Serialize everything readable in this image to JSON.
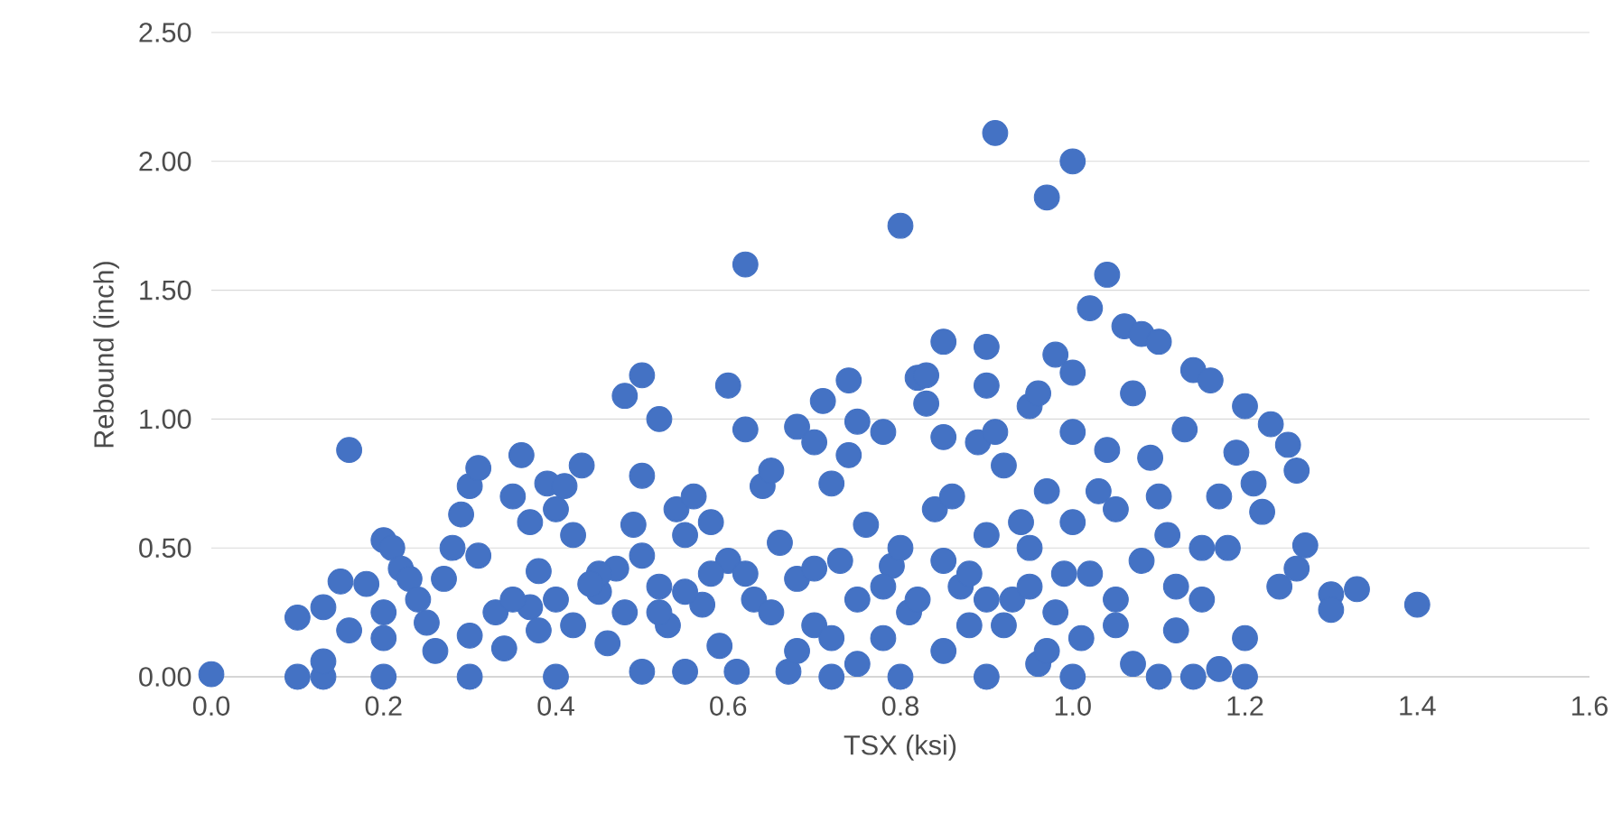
{
  "chart_data": {
    "type": "scatter",
    "xlabel": "TSX (ksi)",
    "ylabel": "Rebound (inch)",
    "color": "#4472c4",
    "marker": "circle",
    "grid": "y",
    "xlim": [
      0,
      1.6
    ],
    "ylim": [
      0,
      2.5
    ],
    "xticks": [
      {
        "value": 0,
        "label": "0.0"
      },
      {
        "value": 0.2,
        "label": "0.2"
      },
      {
        "value": 0.4,
        "label": "0.4"
      },
      {
        "value": 0.6,
        "label": "0.6"
      },
      {
        "value": 0.8,
        "label": "0.8"
      },
      {
        "value": 1,
        "label": "1.0"
      },
      {
        "value": 1.2,
        "label": "1.2"
      },
      {
        "value": 1.4,
        "label": "1.4"
      },
      {
        "value": 1.6,
        "label": "1.6"
      }
    ],
    "yticks": [
      {
        "value": 0,
        "label": "0.00"
      },
      {
        "value": 0.5,
        "label": "0.50"
      },
      {
        "value": 1,
        "label": "1.00"
      },
      {
        "value": 1.5,
        "label": "1.50"
      },
      {
        "value": 2,
        "label": "2.00"
      },
      {
        "value": 2.5,
        "label": "2.50"
      }
    ],
    "x": [
      0.0,
      0.1,
      0.1,
      0.13,
      0.13,
      0.13,
      0.15,
      0.16,
      0.16,
      0.18,
      0.2,
      0.2,
      0.2,
      0.2,
      0.21,
      0.22,
      0.23,
      0.24,
      0.25,
      0.26,
      0.27,
      0.28,
      0.29,
      0.3,
      0.3,
      0.3,
      0.31,
      0.31,
      0.33,
      0.34,
      0.35,
      0.36,
      0.37,
      0.37,
      0.38,
      0.39,
      0.4,
      0.4,
      0.41,
      0.42,
      0.42,
      0.43,
      0.45,
      0.46,
      0.47,
      0.48,
      0.48,
      0.49,
      0.5,
      0.5,
      0.5,
      0.5,
      0.52,
      0.52,
      0.53,
      0.54,
      0.55,
      0.55,
      0.56,
      0.57,
      0.58,
      0.59,
      0.6,
      0.6,
      0.61,
      0.62,
      0.62,
      0.63,
      0.64,
      0.65,
      0.66,
      0.67,
      0.68,
      0.68,
      0.7,
      0.7,
      0.71,
      0.72,
      0.72,
      0.73,
      0.74,
      0.74,
      0.75,
      0.75,
      0.76,
      0.78,
      0.78,
      0.79,
      0.8,
      0.8,
      0.8,
      0.81,
      0.82,
      0.83,
      0.83,
      0.84,
      0.85,
      0.85,
      0.85,
      0.86,
      0.87,
      0.88,
      0.89,
      0.9,
      0.9,
      0.9,
      0.9,
      0.91,
      0.91,
      0.92,
      0.93,
      0.94,
      0.95,
      0.96,
      0.96,
      0.97,
      0.97,
      0.98,
      0.99,
      1.0,
      1.0,
      1.0,
      1.0,
      1.01,
      1.02,
      1.03,
      1.04,
      1.04,
      1.05,
      1.06,
      1.07,
      1.07,
      1.08,
      1.09,
      1.1,
      1.1,
      1.11,
      1.12,
      1.13,
      1.14,
      1.14,
      1.15,
      1.16,
      1.17,
      1.17,
      1.18,
      1.19,
      1.2,
      1.2,
      1.2,
      1.21,
      1.22,
      1.23,
      1.24,
      1.25,
      1.26,
      1.26,
      1.27,
      1.3,
      1.3,
      1.33,
      1.4,
      0.35,
      0.45,
      0.55,
      0.62,
      0.65,
      0.7,
      0.72,
      0.78,
      0.82,
      0.85,
      0.88,
      0.92,
      0.95,
      0.98,
      1.02,
      1.05,
      1.08,
      1.12,
      1.15,
      1.0,
      0.95,
      0.75,
      0.68,
      0.58,
      0.52,
      0.44,
      0.4,
      0.38,
      1.1,
      1.05,
      0.97,
      0.9
    ],
    "values": [
      0.01,
      0.0,
      0.23,
      0.0,
      0.06,
      0.27,
      0.37,
      0.88,
      0.18,
      0.36,
      0.0,
      0.15,
      0.25,
      0.53,
      0.5,
      0.42,
      0.38,
      0.3,
      0.21,
      0.1,
      0.38,
      0.5,
      0.63,
      0.74,
      0.16,
      0.0,
      0.81,
      0.47,
      0.25,
      0.11,
      0.7,
      0.86,
      0.6,
      0.27,
      0.41,
      0.75,
      0.65,
      0.0,
      0.74,
      0.55,
      0.2,
      0.82,
      0.33,
      0.13,
      0.42,
      0.25,
      1.09,
      0.59,
      1.17,
      0.78,
      0.02,
      0.47,
      1.0,
      0.35,
      0.2,
      0.65,
      0.55,
      0.02,
      0.7,
      0.28,
      0.6,
      0.12,
      0.45,
      1.13,
      0.02,
      0.96,
      1.6,
      0.3,
      0.74,
      0.8,
      0.52,
      0.02,
      0.97,
      0.38,
      0.91,
      0.2,
      1.07,
      0.75,
      0.0,
      0.45,
      1.15,
      0.86,
      0.3,
      0.99,
      0.59,
      0.95,
      0.15,
      0.43,
      1.75,
      0.5,
      0.0,
      0.25,
      1.16,
      1.17,
      1.06,
      0.65,
      1.3,
      0.93,
      0.1,
      0.7,
      0.35,
      0.2,
      0.91,
      1.28,
      1.13,
      0.55,
      0.0,
      2.11,
      0.95,
      0.82,
      0.3,
      0.6,
      1.05,
      1.1,
      0.05,
      1.86,
      0.72,
      1.25,
      0.4,
      2.0,
      1.18,
      0.95,
      0.0,
      0.15,
      1.43,
      0.72,
      1.56,
      0.88,
      0.3,
      1.36,
      1.1,
      0.05,
      1.33,
      0.85,
      1.3,
      0.0,
      0.55,
      0.18,
      0.96,
      0.0,
      1.19,
      0.3,
      1.15,
      0.03,
      0.7,
      0.5,
      0.87,
      1.05,
      0.0,
      0.15,
      0.75,
      0.64,
      0.98,
      0.35,
      0.9,
      0.8,
      0.42,
      0.51,
      0.32,
      0.26,
      0.34,
      0.28,
      0.3,
      0.4,
      0.33,
      0.4,
      0.25,
      0.42,
      0.15,
      0.35,
      0.3,
      0.45,
      0.4,
      0.2,
      0.35,
      0.25,
      0.4,
      0.2,
      0.45,
      0.35,
      0.5,
      0.6,
      0.5,
      0.05,
      0.1,
      0.4,
      0.25,
      0.36,
      0.3,
      0.18,
      0.7,
      0.65,
      0.1,
      0.3
    ]
  }
}
